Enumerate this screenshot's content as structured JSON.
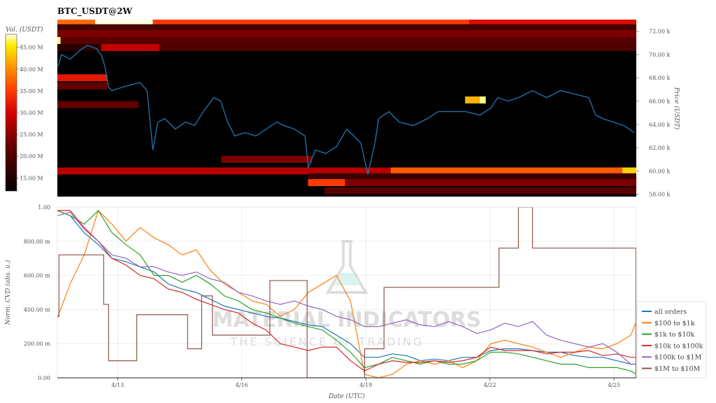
{
  "chart_data": [
    {
      "type": "heatmap",
      "title": "BTC_USDT@2W",
      "ylabel": "Price (USDT)",
      "colorbar_label": "Vol. (USDT)",
      "colorbar_ticks": [
        "15.00 M",
        "20.00 M",
        "25.00 M",
        "30.00 M",
        "35.00 M",
        "40.00 M",
        "45.00 M"
      ],
      "colorbar_tick_values": [
        15,
        20,
        25,
        30,
        35,
        40,
        45
      ],
      "colorbar_range_m": [
        12,
        48
      ],
      "colormap": "black-red-yellow-white (hot)",
      "y_ticks": [
        "58.00 k",
        "60.00 k",
        "62.00 k",
        "64.00 k",
        "66.00 k",
        "68.00 k",
        "70.00 k",
        "72.00 k"
      ],
      "y_tick_values": [
        58,
        60,
        62,
        64,
        66,
        68,
        70,
        72
      ],
      "ylim_k": [
        57.8,
        73.0
      ],
      "x_unit": "day of April (UTC)",
      "xlim": [
        11.54,
        25.54
      ],
      "bands": [
        {
          "price_k": 72.8,
          "segments": [
            [
              11.54,
              12.45,
              38
            ],
            [
              12.45,
              13.85,
              48
            ],
            [
              13.85,
              21.5,
              35
            ],
            [
              21.5,
              25.54,
              31
            ]
          ]
        },
        {
          "price_k": 72.3,
          "segments": [
            [
              11.54,
              25.54,
              19
            ]
          ]
        },
        {
          "price_k": 71.8,
          "segments": [
            [
              11.54,
              25.54,
              24
            ]
          ]
        },
        {
          "price_k": 71.2,
          "segments": [
            [
              11.54,
              11.62,
              47
            ],
            [
              11.62,
              25.54,
              21
            ]
          ]
        },
        {
          "price_k": 70.6,
          "segments": [
            [
              11.54,
              12.6,
              16
            ],
            [
              12.6,
              14.0,
              29
            ],
            [
              14.0,
              25.54,
              20
            ]
          ]
        },
        {
          "price_k": 68.0,
          "segments": [
            [
              11.54,
              12.75,
              32
            ]
          ]
        },
        {
          "price_k": 67.3,
          "segments": [
            [
              11.54,
              12.75,
              22
            ]
          ]
        },
        {
          "price_k": 66.1,
          "segments": [
            [
              21.4,
              21.75,
              42
            ],
            [
              21.75,
              21.9,
              47
            ]
          ]
        },
        {
          "price_k": 65.7,
          "segments": [
            [
              11.54,
              13.5,
              22
            ]
          ]
        },
        {
          "price_k": 61.0,
          "segments": [
            [
              15.5,
              17.7,
              24
            ]
          ]
        },
        {
          "price_k": 60.0,
          "segments": [
            [
              11.54,
              19.6,
              28
            ],
            [
              19.6,
              25.2,
              37
            ],
            [
              25.2,
              25.54,
              44
            ]
          ]
        },
        {
          "price_k": 59.5,
          "segments": [
            [
              17.6,
              25.54,
              18
            ]
          ]
        },
        {
          "price_k": 59.0,
          "segments": [
            [
              17.6,
              18.5,
              35
            ],
            [
              18.5,
              25.54,
              24
            ]
          ]
        },
        {
          "price_k": 58.3,
          "segments": [
            [
              18.0,
              25.54,
              21
            ]
          ]
        }
      ],
      "price_series": {
        "color": "#1f77b4",
        "x": [
          11.56,
          11.64,
          11.85,
          12.1,
          12.27,
          12.49,
          12.61,
          12.69,
          12.78,
          12.86,
          13.12,
          13.54,
          13.71,
          13.85,
          13.97,
          14.14,
          14.39,
          14.64,
          14.86,
          15.07,
          15.32,
          15.49,
          15.66,
          15.83,
          16.08,
          16.34,
          16.59,
          16.85,
          17.02,
          17.27,
          17.53,
          17.61,
          17.78,
          18.03,
          18.29,
          18.54,
          18.71,
          18.88,
          19.05,
          19.22,
          19.31,
          19.56,
          19.81,
          20.15,
          20.49,
          20.75,
          21.08,
          21.42,
          21.76,
          22.02,
          22.19,
          22.44,
          22.69,
          23.03,
          23.37,
          23.71,
          24.05,
          24.39,
          24.56,
          24.73,
          24.98,
          25.24,
          25.49
        ],
        "y_k": [
          69.0,
          70.0,
          69.6,
          70.4,
          70.8,
          70.5,
          69.9,
          69.0,
          67.2,
          66.9,
          67.2,
          67.6,
          66.9,
          61.8,
          64.2,
          64.5,
          63.6,
          64.2,
          63.9,
          65.1,
          66.3,
          66.0,
          64.2,
          63.0,
          63.3,
          63.0,
          63.6,
          64.2,
          63.9,
          63.6,
          63.0,
          60.3,
          61.8,
          61.5,
          62.1,
          63.6,
          63.0,
          62.4,
          59.7,
          62.4,
          64.5,
          65.1,
          64.2,
          63.9,
          64.5,
          65.1,
          65.1,
          65.1,
          64.8,
          65.4,
          66.3,
          66.0,
          66.3,
          66.9,
          66.3,
          66.9,
          66.6,
          66.3,
          64.8,
          64.5,
          64.2,
          63.9,
          63.3
        ]
      }
    },
    {
      "type": "line",
      "xlabel": "Date (UTC)",
      "ylabel": "Norm. CVD (abs. u.)",
      "x_unit": "day of April (UTC)",
      "xlim": [
        11.54,
        25.54
      ],
      "ylim": [
        0,
        1
      ],
      "x_ticks": [
        "4/13",
        "4/16",
        "4/19",
        "4/22",
        "4/25"
      ],
      "x_tick_values": [
        13,
        16,
        19,
        22,
        25
      ],
      "y_ticks": [
        "0.00",
        "200.00 m",
        "400.00 m",
        "600.00 m",
        "800.00 m",
        "1.00"
      ],
      "y_tick_values": [
        0,
        0.2,
        0.4,
        0.6,
        0.8,
        1.0
      ],
      "grid": true,
      "legend_placement": "right",
      "x": [
        11.54,
        11.85,
        12.19,
        12.53,
        12.86,
        13.2,
        13.54,
        13.88,
        14.22,
        14.56,
        14.9,
        15.24,
        15.58,
        15.92,
        16.25,
        16.59,
        16.93,
        17.27,
        17.61,
        17.95,
        18.29,
        18.63,
        18.97,
        19.31,
        19.64,
        19.98,
        20.32,
        20.66,
        21.0,
        21.34,
        21.68,
        22.02,
        22.36,
        22.69,
        23.03,
        23.37,
        23.71,
        24.05,
        24.39,
        24.73,
        25.07,
        25.41,
        25.54
      ],
      "series": [
        {
          "name": "all orders",
          "color": "#1f77b4",
          "values": [
            0.98,
            0.95,
            0.85,
            0.78,
            0.7,
            0.68,
            0.65,
            0.62,
            0.55,
            0.52,
            0.5,
            0.46,
            0.42,
            0.4,
            0.38,
            0.36,
            0.35,
            0.33,
            0.31,
            0.3,
            0.25,
            0.2,
            0.12,
            0.12,
            0.14,
            0.13,
            0.1,
            0.11,
            0.1,
            0.12,
            0.12,
            0.16,
            0.17,
            0.17,
            0.16,
            0.15,
            0.15,
            0.13,
            0.12,
            0.12,
            0.1,
            0.08,
            0.08
          ]
        },
        {
          "name": "$100 to $1k",
          "color": "#ff7f0e",
          "values": [
            0.35,
            0.55,
            0.72,
            0.98,
            0.9,
            0.8,
            0.88,
            0.82,
            0.78,
            0.72,
            0.75,
            0.63,
            0.55,
            0.5,
            0.45,
            0.43,
            0.36,
            0.4,
            0.5,
            0.55,
            0.6,
            0.45,
            0.02,
            0.0,
            0.02,
            0.08,
            0.1,
            0.08,
            0.1,
            0.06,
            0.1,
            0.2,
            0.22,
            0.2,
            0.18,
            0.15,
            0.12,
            0.15,
            0.18,
            0.17,
            0.2,
            0.25,
            0.33
          ]
        },
        {
          "name": "$1k to $10k",
          "color": "#2ca02c",
          "values": [
            0.98,
            0.95,
            0.9,
            0.98,
            0.85,
            0.78,
            0.72,
            0.6,
            0.6,
            0.56,
            0.6,
            0.55,
            0.48,
            0.45,
            0.4,
            0.38,
            0.35,
            0.32,
            0.3,
            0.28,
            0.22,
            0.15,
            0.06,
            0.08,
            0.12,
            0.1,
            0.08,
            0.1,
            0.08,
            0.08,
            0.1,
            0.15,
            0.15,
            0.14,
            0.12,
            0.1,
            0.08,
            0.08,
            0.06,
            0.06,
            0.06,
            0.04,
            0.02
          ]
        },
        {
          "name": "$10k to $100k",
          "color": "#d62728",
          "values": [
            0.98,
            0.98,
            0.88,
            0.8,
            0.7,
            0.66,
            0.6,
            0.58,
            0.52,
            0.5,
            0.46,
            0.43,
            0.4,
            0.38,
            0.32,
            0.28,
            0.2,
            0.18,
            0.16,
            0.18,
            0.18,
            0.1,
            0.04,
            0.08,
            0.1,
            0.09,
            0.09,
            0.1,
            0.09,
            0.1,
            0.12,
            0.18,
            0.16,
            0.16,
            0.16,
            0.14,
            0.15,
            0.15,
            0.16,
            0.13,
            0.14,
            0.12,
            0.12
          ]
        },
        {
          "name": "$100k to $1M",
          "color": "#9467bd",
          "values": [
            0.95,
            0.97,
            0.87,
            0.8,
            0.72,
            0.7,
            0.65,
            0.65,
            0.62,
            0.6,
            0.62,
            0.58,
            0.56,
            0.5,
            0.48,
            0.45,
            0.43,
            0.45,
            0.42,
            0.4,
            0.36,
            0.34,
            0.3,
            0.3,
            0.32,
            0.34,
            0.31,
            0.3,
            0.33,
            0.3,
            0.26,
            0.28,
            0.32,
            0.3,
            0.33,
            0.25,
            0.22,
            0.2,
            0.18,
            0.2,
            0.15,
            0.08,
            0.08
          ]
        },
        {
          "name": "$1M to $10M",
          "color": "#8c564b",
          "step": true,
          "points": [
            [
              11.54,
              0.36
            ],
            [
              11.58,
              0.72
            ],
            [
              12.66,
              0.43
            ],
            [
              12.78,
              0.1
            ],
            [
              13.46,
              0.37
            ],
            [
              14.69,
              0.17
            ],
            [
              15.03,
              0.48
            ],
            [
              15.29,
              0.25
            ],
            [
              16.68,
              0.57
            ],
            [
              17.58,
              0.0
            ],
            [
              18.97,
              0.17
            ],
            [
              19.44,
              0.53
            ],
            [
              22.22,
              0.76
            ],
            [
              22.69,
              1.0
            ],
            [
              23.03,
              0.76
            ],
            [
              25.53,
              0.0
            ]
          ]
        }
      ]
    }
  ],
  "watermark": {
    "line1": "MATERIAL INDICATORS",
    "line2": "THE SCIENCE OF TRADING"
  }
}
